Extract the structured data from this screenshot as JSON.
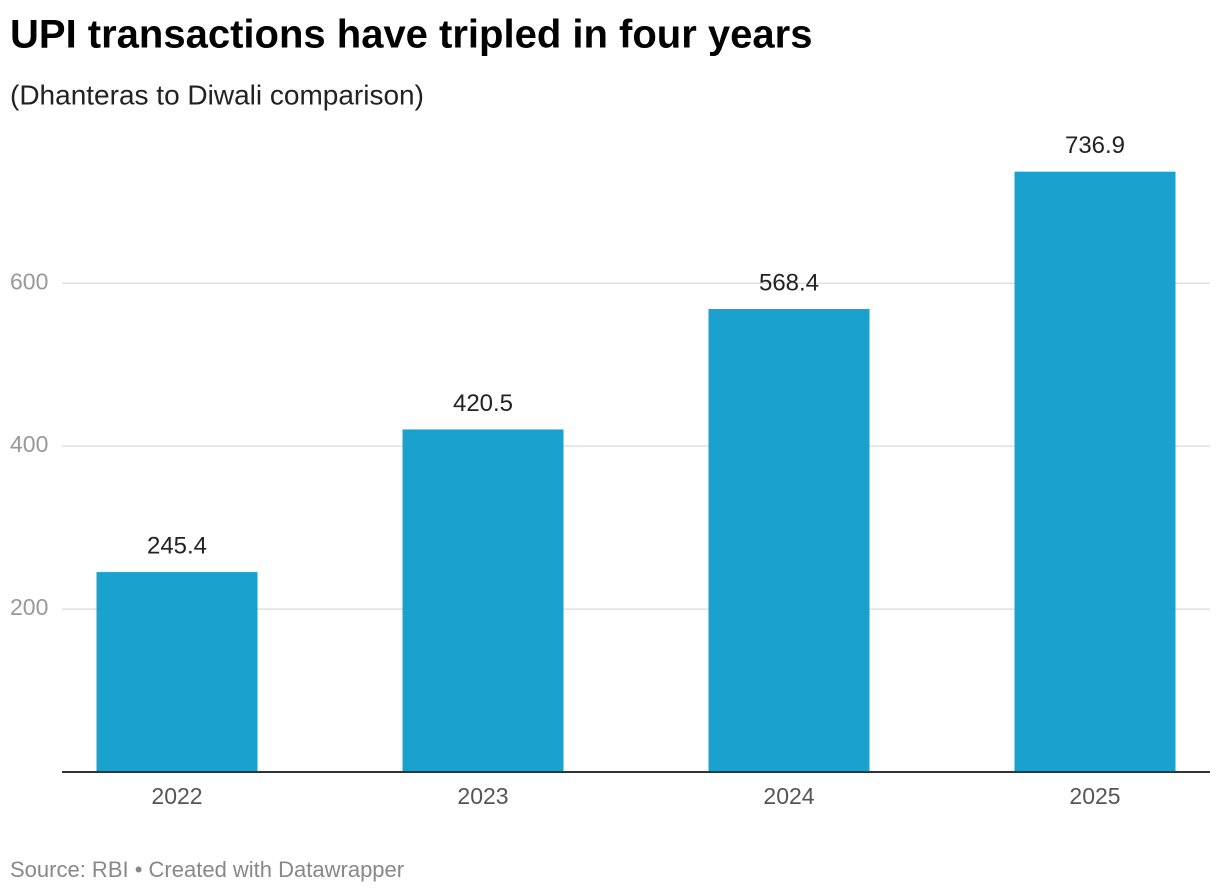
{
  "chart_data": {
    "type": "bar",
    "title": "UPI transactions have tripled in four years",
    "subtitle": "(Dhanteras to Diwali comparison)",
    "categories": [
      "2022",
      "2023",
      "2024",
      "2025"
    ],
    "values": [
      245.4,
      420.5,
      568.4,
      736.9
    ],
    "color": "#1aa1cd",
    "ylim": [
      0,
      750
    ],
    "yticks": [
      200,
      400,
      600
    ],
    "grid": true,
    "source": "Source: RBI • Created with Datawrapper"
  }
}
